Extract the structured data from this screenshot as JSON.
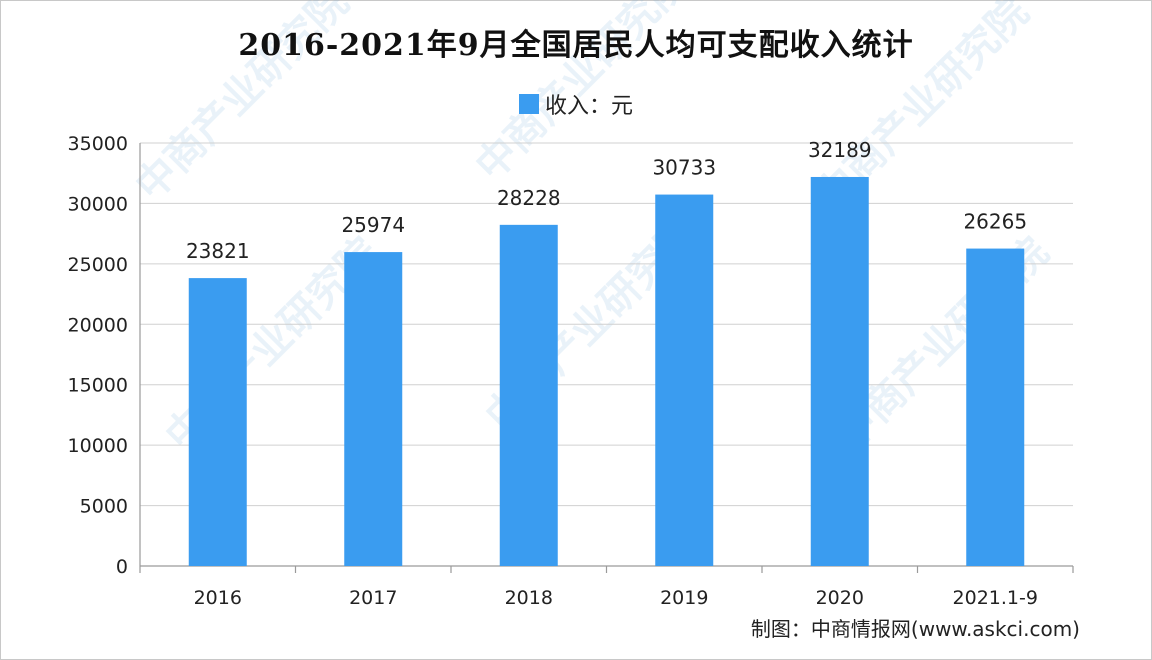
{
  "chart_data": {
    "type": "bar",
    "title": "2016-2021年9月全国居民人均可支配收入统计",
    "legend": [
      "收入：元"
    ],
    "legend_position": "top-center",
    "categories": [
      "2016",
      "2017",
      "2018",
      "2019",
      "2020",
      "2021.1-9"
    ],
    "series": [
      {
        "name": "收入：元",
        "color": "#3a9cf0",
        "values": [
          23821,
          25974,
          28228,
          30733,
          32189,
          26265
        ]
      }
    ],
    "data_labels": [
      "23821",
      "25974",
      "28228",
      "30733",
      "32189",
      "26265"
    ],
    "ylim": [
      0,
      35000
    ],
    "yticks": [
      0,
      5000,
      10000,
      15000,
      20000,
      25000,
      30000,
      35000
    ],
    "ytick_labels": [
      "0",
      "5000",
      "10000",
      "15000",
      "20000",
      "25000",
      "30000",
      "35000"
    ],
    "grid": true,
    "xlabel": "",
    "ylabel": ""
  },
  "source_credit": "制图：中商情报网(www.askci.com)",
  "watermark_text": "中商产业研究院",
  "colors": {
    "bar": "#3a9cf0",
    "grid": "#d0d0d0",
    "axis": "#9a9a9a"
  }
}
